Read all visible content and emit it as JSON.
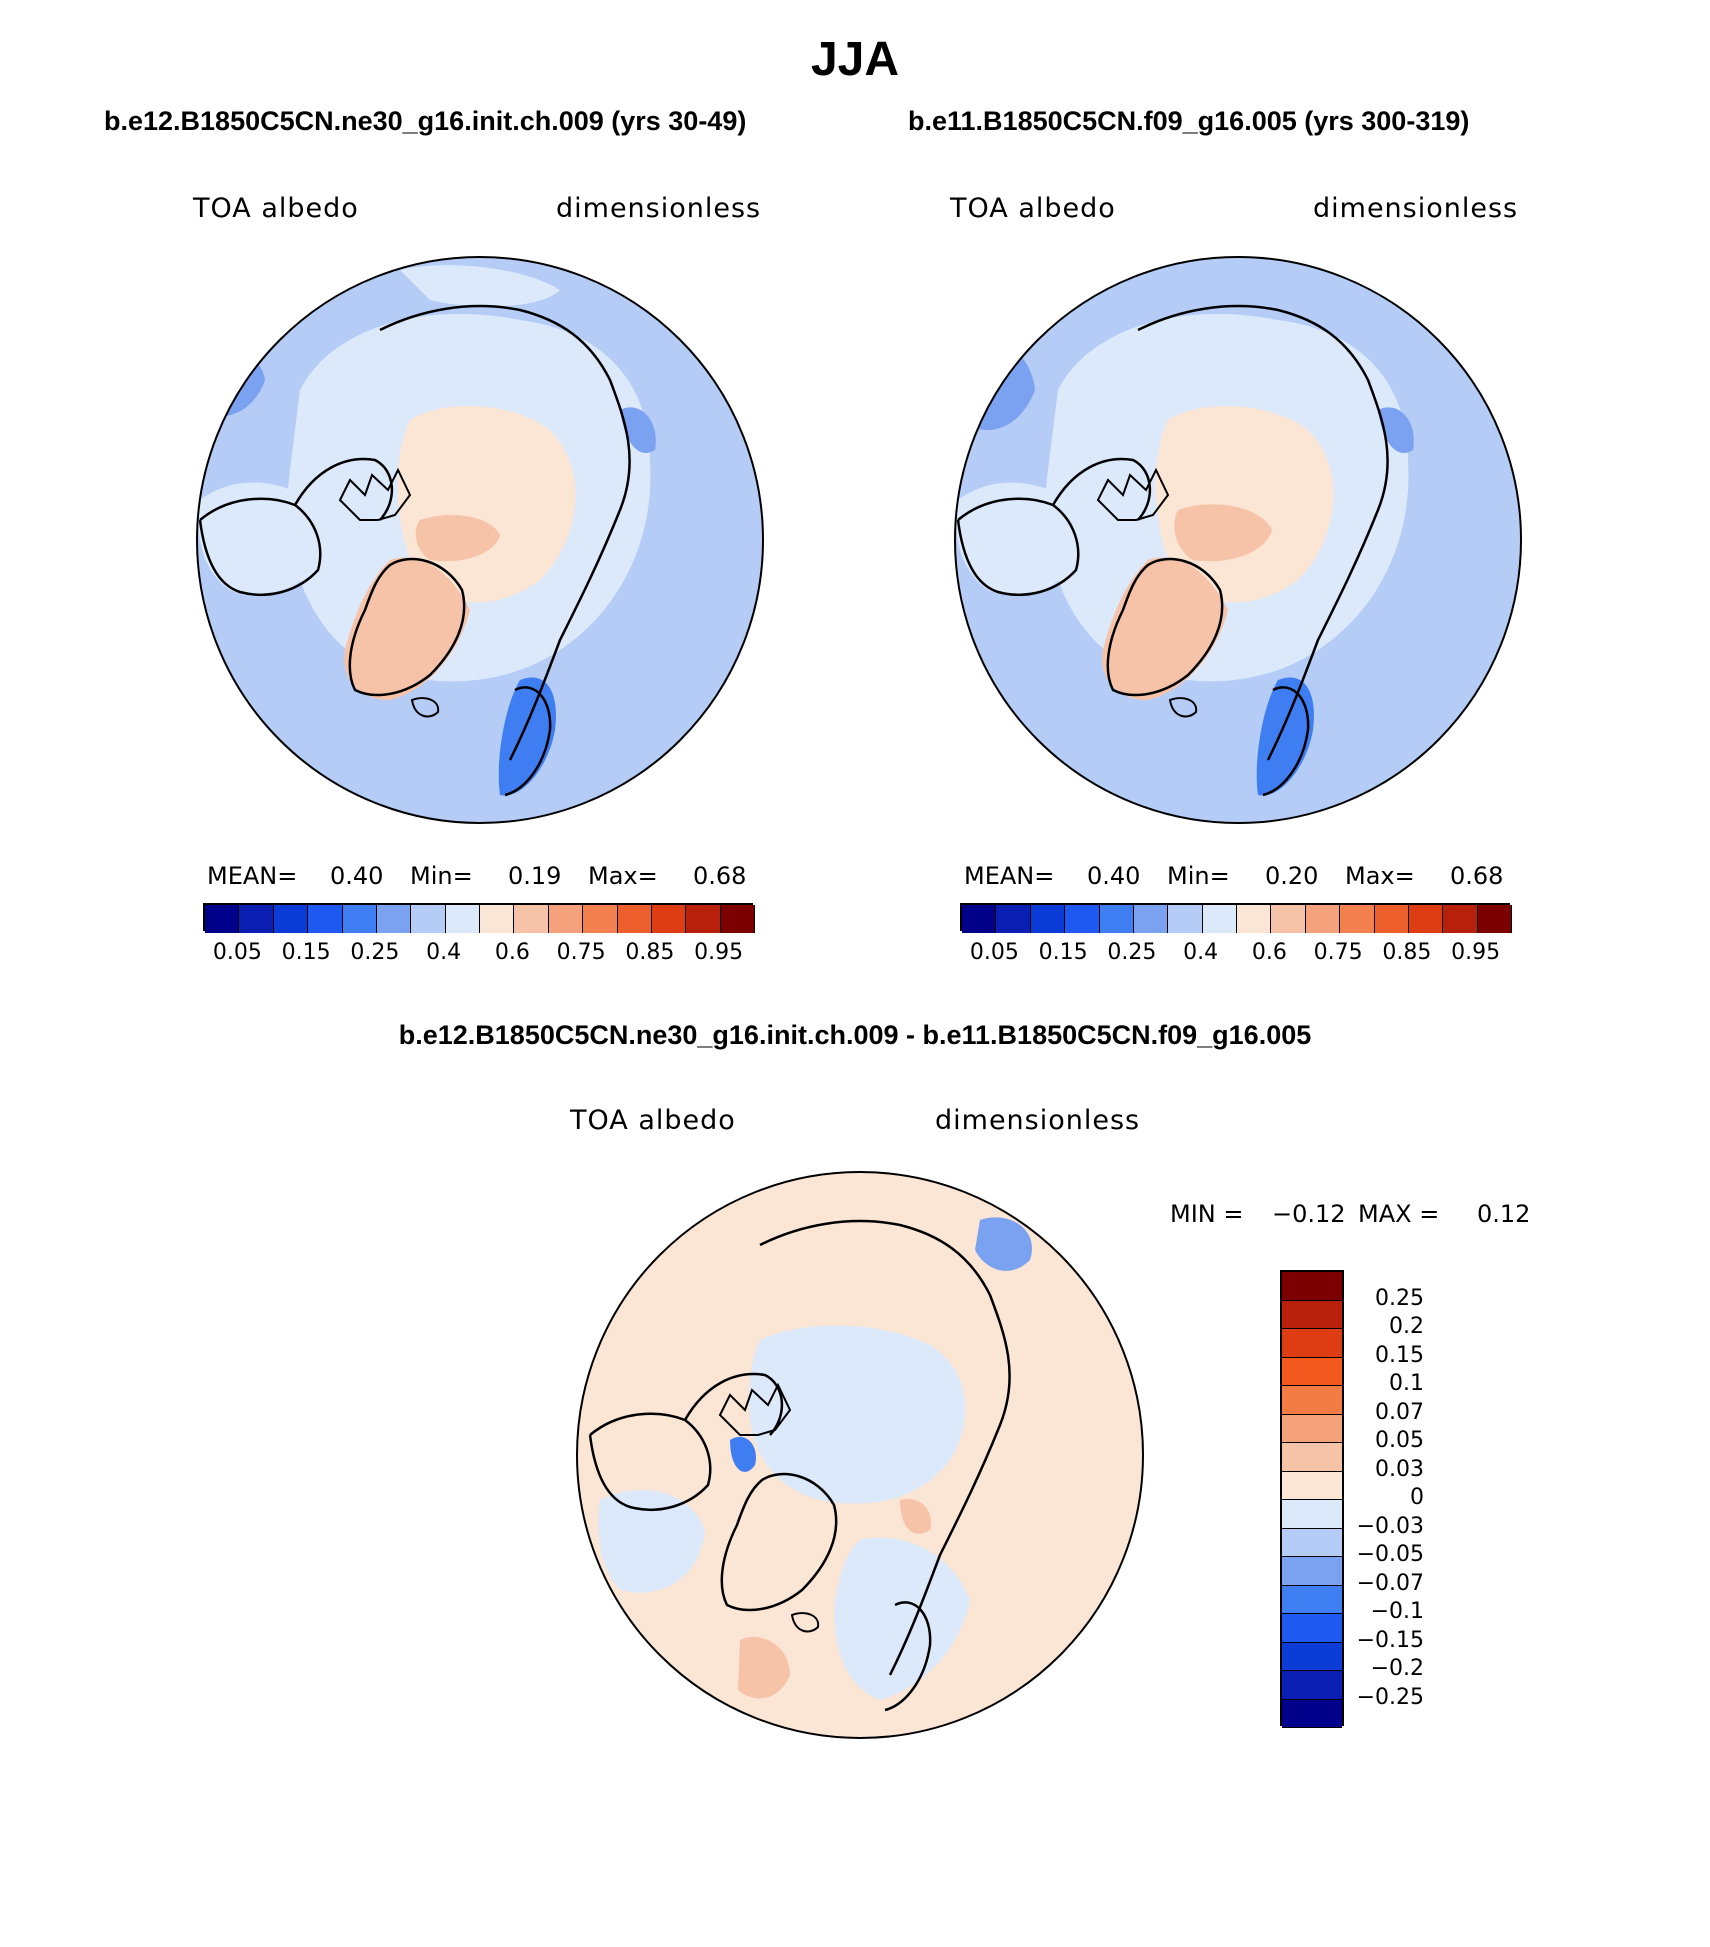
{
  "page": {
    "title": "JJA",
    "season": "JJA"
  },
  "panels": [
    {
      "case_title": "b.e12.B1850C5CN.ne30_g16.init.ch.009 (yrs 30-49)",
      "var_label": "TOA albedo",
      "units": "dimensionless",
      "stats": {
        "mean_label": "MEAN=",
        "mean": "0.40",
        "min_label": "Min=",
        "min": "0.19",
        "max_label": "Max=",
        "max": "0.68"
      }
    },
    {
      "case_title": "b.e11.B1850C5CN.f09_g16.005 (yrs 300-319)",
      "var_label": "TOA albedo",
      "units": "dimensionless",
      "stats": {
        "mean_label": "MEAN=",
        "mean": "0.40",
        "min_label": "Min=",
        "min": "0.20",
        "max_label": "Max=",
        "max": "0.68"
      }
    }
  ],
  "abs_colorbar": {
    "colors": [
      "#00008a",
      "#0a1eb4",
      "#0c3cd8",
      "#1e5af2",
      "#3f7ef2",
      "#7aa2f0",
      "#b4ccf6",
      "#dbe9fb",
      "#fbe6d6",
      "#f7c3a8",
      "#f5a27c",
      "#f3814f",
      "#ed5f2c",
      "#de3c12",
      "#b8200c",
      "#7c0000"
    ],
    "labels": [
      "0.05",
      "0.15",
      "0.25",
      "0.4",
      "0.6",
      "0.75",
      "0.85",
      "0.95"
    ]
  },
  "diff_panel": {
    "case_title": "b.e12.B1850C5CN.ne30_g16.init.ch.009 - b.e11.B1850C5CN.f09_g16.005",
    "var_label": "TOA albedo",
    "units": "dimensionless",
    "min_label": "MIN =",
    "min": "−0.12",
    "max_label": "MAX =",
    "max": "0.12"
  },
  "diff_colorbar": {
    "colors": [
      "#7c0000",
      "#b8200c",
      "#de3c12",
      "#f3591f",
      "#f37c45",
      "#f5a27c",
      "#f7c3a8",
      "#fbe6d6",
      "#dbe9fb",
      "#b4ccf6",
      "#7aa2f0",
      "#3f7ef2",
      "#1e5af2",
      "#0c3cd8",
      "#0a1eb4",
      "#00008a"
    ],
    "labels": [
      "0.25",
      "0.2",
      "0.15",
      "0.1",
      "0.07",
      "0.05",
      "0.03",
      "0",
      "−0.03",
      "−0.05",
      "−0.07",
      "−0.1",
      "−0.15",
      "−0.2",
      "−0.25"
    ]
  },
  "map_colors": {
    "ocean_bg": "#b4ccf6",
    "light_blue": "#dbe9fb",
    "mid_blue": "#7aa2f0",
    "dark_blue": "#3f7ef2",
    "peach": "#fbe6d6",
    "salmon": "#f7c3a8",
    "diff_bg": "#fbe6d6",
    "coast": "#000000"
  }
}
